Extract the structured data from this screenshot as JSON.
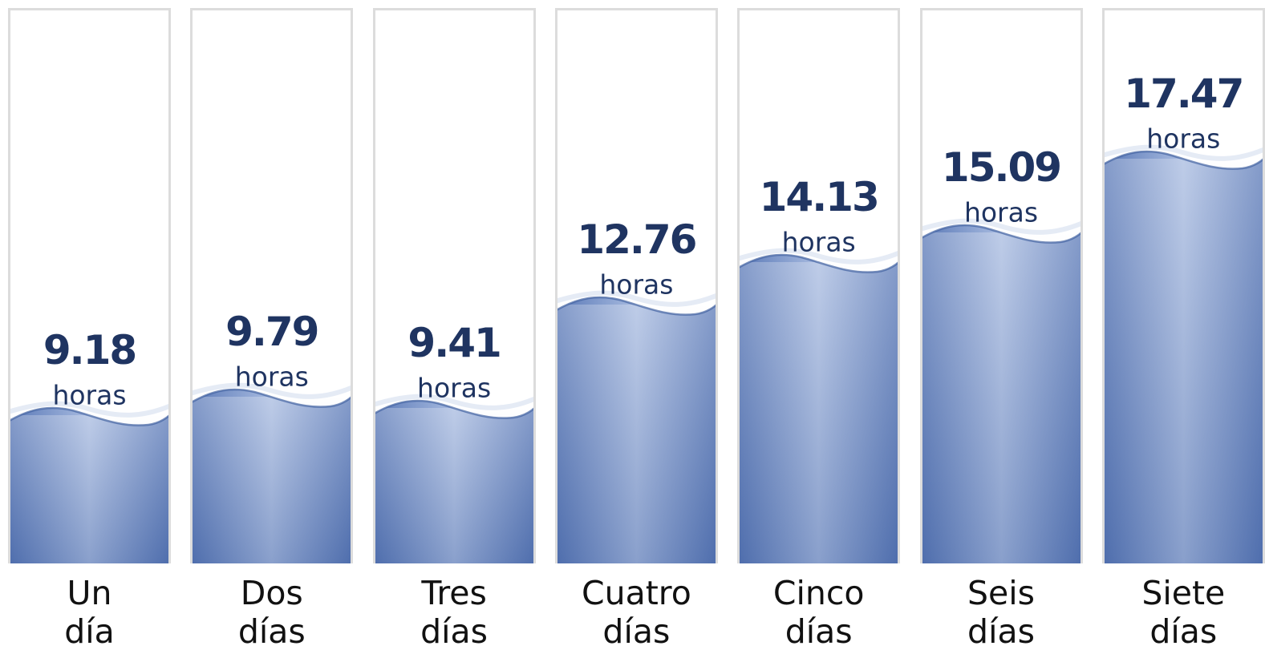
{
  "chart_data": {
    "type": "bar",
    "categories": [
      "Un día",
      "Dos días",
      "Tres días",
      "Cuatro días",
      "Cinco días",
      "Seis días",
      "Siete días"
    ],
    "values": [
      9.18,
      9.79,
      9.41,
      12.76,
      14.13,
      15.09,
      17.47
    ],
    "unit": "horas",
    "color": "#5877b6",
    "label_color": "#1f3461"
  }
}
